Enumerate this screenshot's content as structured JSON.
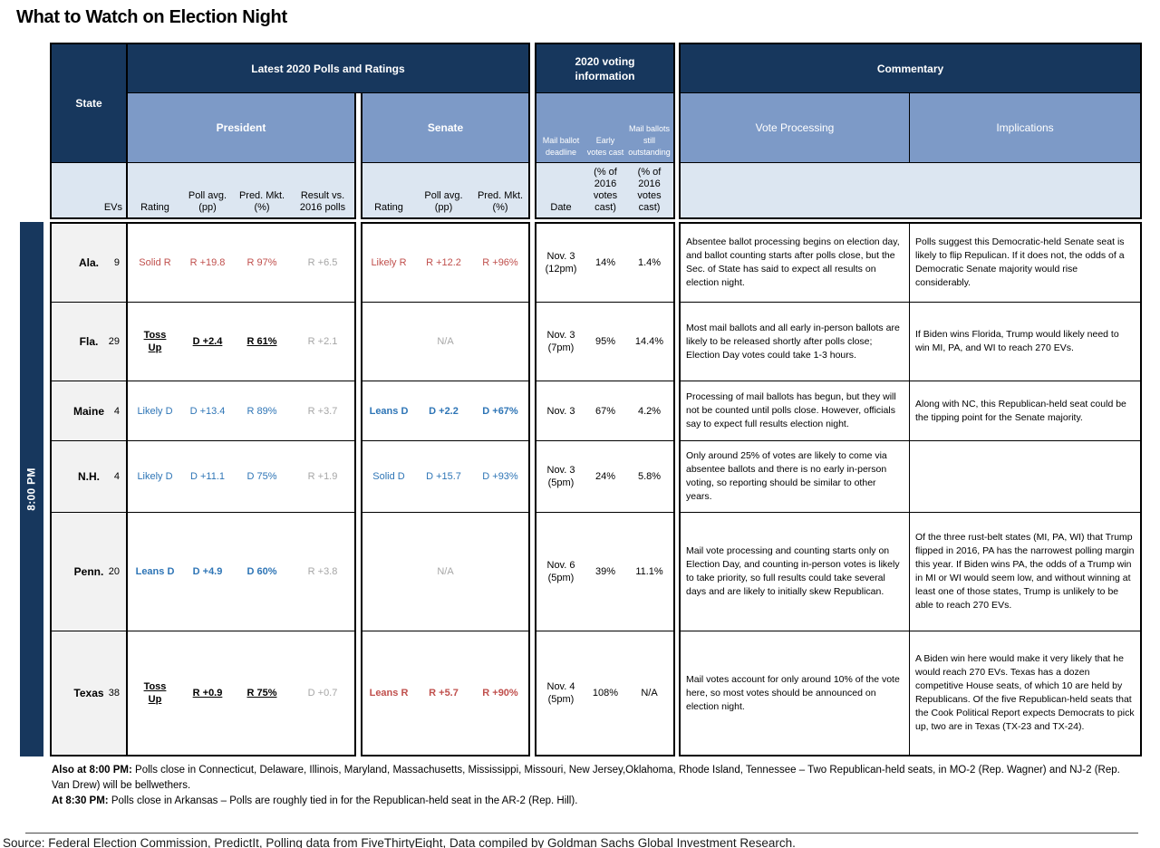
{
  "colors": {
    "navy_header": "#17375D",
    "medium_blue_header": "#7D9AC7",
    "pale_blue_header": "#DCE6F1",
    "state_cell_gray": "#F2F2F2",
    "republican_red_text": "#C0504D",
    "democrat_blue_text": "#2E75B6",
    "muted_gray_text": "#A6A6A6"
  },
  "page": {
    "title": "What to Watch on Election Night",
    "source": "Source: Federal Election Commission, PredictIt, Polling data from FiveThirtyEight, Data compiled by Goldman Sachs Global Investment Research."
  },
  "table": {
    "time_group": "8:00 PM",
    "header": {
      "state": "State",
      "polls_group": "Latest 2020 Polls and Ratings",
      "voting_group": "2020 voting information",
      "commentary_group": "Commentary",
      "president": "President",
      "senate": "Senate",
      "mail_ballot_deadline": "Mail ballot deadline",
      "early_votes_cast": "Early votes cast",
      "mail_ballots_outstanding": "Mail ballots still outstanding",
      "vote_processing": "Vote Processing",
      "implications": "Implications",
      "evs": "EVs",
      "rating": "Rating",
      "poll_avg": "Poll avg. (pp)",
      "pred_mkt": "Pred. Mkt. (%)",
      "result_vs_2016": "Result vs. 2016 polls",
      "date": "Date",
      "pct_of_2016": "(% of 2016 votes cast)"
    },
    "rows": [
      {
        "state": "Ala.",
        "evs": "9",
        "pres": {
          "rating": "Solid R",
          "poll": "R +19.8",
          "mkt": "R 97%",
          "vs2016": "R +6.5"
        },
        "sen": {
          "rating": "Likely R",
          "poll": "R +12.2",
          "mkt": "R +96%"
        },
        "voting": {
          "date": "Nov. 3 (12pm)",
          "early": "14%",
          "outstanding": "1.4%"
        },
        "processing": "Absentee ballot processing begins on election day, and ballot counting starts after polls close, but the Sec. of State has said to expect all results on election night.",
        "implications": "Polls suggest this Democratic-held Senate seat is likely to flip Repulican.  If it does not, the odds of a Democratic Senate majority would rise considerably."
      },
      {
        "state": "Fla.",
        "evs": "29",
        "pres": {
          "rating": "Toss\nUp",
          "poll": "D +2.4",
          "mkt": "R 61%",
          "vs2016": "R +2.1"
        },
        "sen": {
          "na": "N/A"
        },
        "voting": {
          "date": "Nov. 3 (7pm)",
          "early": "95%",
          "outstanding": "14.4%"
        },
        "processing": "Most mail ballots and all early in-person ballots are likely to be released shortly after polls close; Election Day votes could take 1-3 hours.",
        "implications": "If Biden wins Florida, Trump would likely need to win MI, PA, and WI to reach 270 EVs."
      },
      {
        "state": "Maine",
        "evs": "4",
        "pres": {
          "rating": "Likely D",
          "poll": "D +13.4",
          "mkt": "R 89%",
          "vs2016": "R +3.7"
        },
        "sen": {
          "rating": "Leans D",
          "poll": "D +2.2",
          "mkt": "D +67%"
        },
        "voting": {
          "date": "Nov. 3",
          "early": "67%",
          "outstanding": "4.2%"
        },
        "processing": "Processing of mail ballots has begun, but they will not be counted until polls close. However, officials say to expect full results election night.",
        "implications": "Along with NC, this Republican-held seat could be the tipping point for the Senate majority."
      },
      {
        "state": "N.H.",
        "evs": "4",
        "pres": {
          "rating": "Likely D",
          "poll": "D +11.1",
          "mkt": "D 75%",
          "vs2016": "R +1.9"
        },
        "sen": {
          "rating": "Solid D",
          "poll": "D +15.7",
          "mkt": "D +93%"
        },
        "voting": {
          "date": "Nov. 3 (5pm)",
          "early": "24%",
          "outstanding": "5.8%"
        },
        "processing": "Only around 25% of votes are likely to come via absentee ballots and there is no early in-person voting, so reporting should be similar to other years.",
        "implications": ""
      },
      {
        "state": "Penn.",
        "evs": "20",
        "pres": {
          "rating": "Leans D",
          "poll": "D +4.9",
          "mkt": "D 60%",
          "vs2016": "R +3.8"
        },
        "sen": {
          "na": "N/A"
        },
        "voting": {
          "date": "Nov. 6 (5pm)",
          "early": "39%",
          "outstanding": "11.1%"
        },
        "processing": "Mail vote processing and counting starts only on Election Day, and counting in-person votes is likely to take priority, so full results could take several days and are likely to initially skew Republican.",
        "implications": "Of the three rust-belt states (MI, PA, WI) that Trump flipped in 2016, PA has the narrowest polling margin this year. If Biden wins PA, the odds of a Trump win in MI or WI would seem low, and without winning at least one of those states, Trump is unlikely to be able to reach 270 EVs."
      },
      {
        "state": "Texas",
        "evs": "38",
        "pres": {
          "rating": "Toss\nUp",
          "poll": "R +0.9",
          "mkt": "R 75%",
          "vs2016": "D +0.7"
        },
        "sen": {
          "rating": "Leans R",
          "poll": "R +5.7",
          "mkt": "R +90%"
        },
        "voting": {
          "date": "Nov. 4 (5pm)",
          "early": "108%",
          "outstanding": "N/A"
        },
        "processing": "Mail votes account for only around 10% of the vote here, so most votes should be announced on election night.",
        "implications": "A Biden win here would make it very likely that he would reach 270 EVs. Texas has a dozen competitive House seats, of which 10 are held by Republicans. Of the five Republican-held seats that the Cook Political Report expects Democrats to pick up, two are in Texas (TX-23 and TX-24)."
      }
    ]
  },
  "notes": {
    "n1_label": "Also at 8:00 PM:",
    "n1_text": " Polls close in Connecticut, Delaware, Illinois, Maryland, Massachusetts, Mississippi, Missouri, New Jersey,Oklahoma, Rhode Island,  Tennessee – Two Republican-held seats, in MO-2 (Rep. Wagner) and NJ-2 (Rep. Van Drew) will be bellwethers.",
    "n2_label": "At 8:30 PM:",
    "n2_text": " Polls close in Arkansas – Polls are roughly tied in for the Republican-held seat in the AR-2 (Rep. Hill)."
  }
}
